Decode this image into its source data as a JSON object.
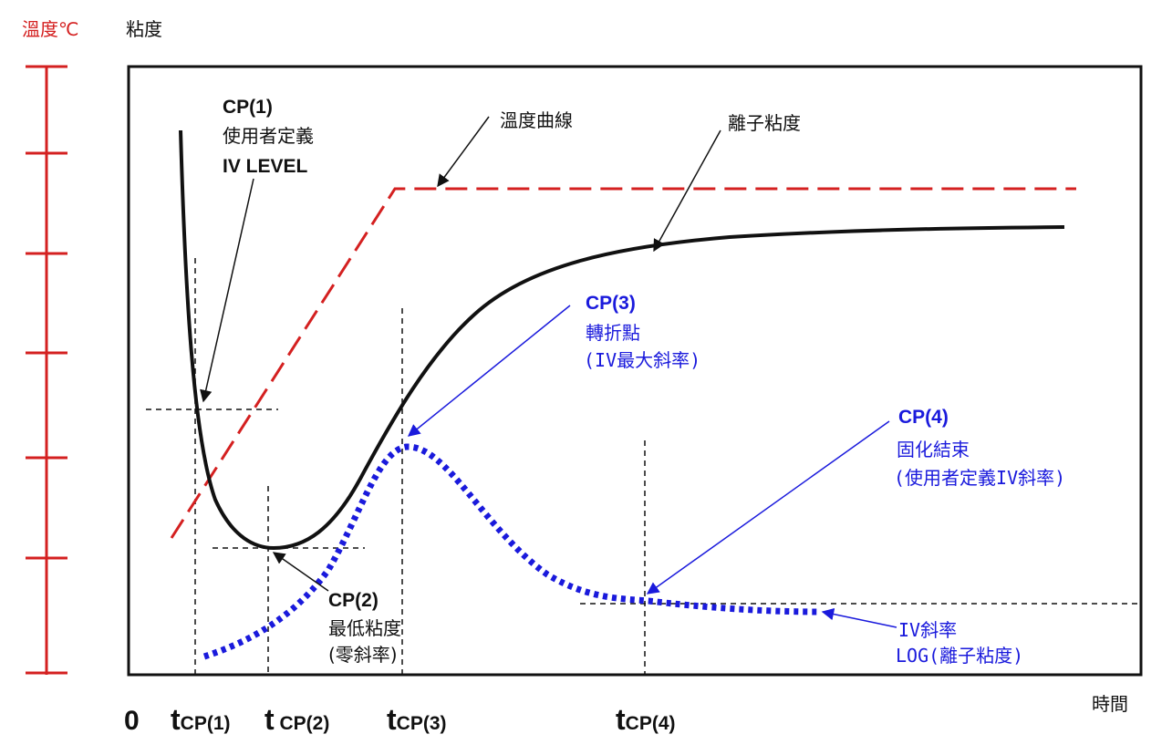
{
  "axes": {
    "left_temperature_label": "溫度℃",
    "left_viscosity_label": "粘度",
    "x_label": "時間",
    "origin": "0",
    "ticks": [
      {
        "t": "t",
        "sub": "CP(1)"
      },
      {
        "t": "t",
        "sub": " CP(2)"
      },
      {
        "t": "t",
        "sub": "CP(3)"
      },
      {
        "t": "t",
        "sub": "CP(4)"
      }
    ]
  },
  "callouts": {
    "cp1": {
      "title": "CP(1)",
      "line1": "使用者定義",
      "line2": "IV LEVEL"
    },
    "cp2": {
      "title": "CP(2)",
      "line1": "最低粘度",
      "line2": "(零斜率)"
    },
    "cp3": {
      "title": "CP(3)",
      "line1": "轉折點",
      "line2": "(IV最大斜率)"
    },
    "cp4": {
      "title": "CP(4)",
      "line1": "固化結束",
      "line2": "(使用者定義IV斜率)"
    },
    "temperature_curve": "溫度曲線",
    "ion_viscosity": "離子粘度",
    "iv_slope": {
      "line1": "IV斜率",
      "line2": "LOG(離子粘度)"
    }
  },
  "colors": {
    "temperature": "#d42020",
    "viscosity": "#111111",
    "slope": "#1a1adc",
    "guides": "#111111"
  }
}
